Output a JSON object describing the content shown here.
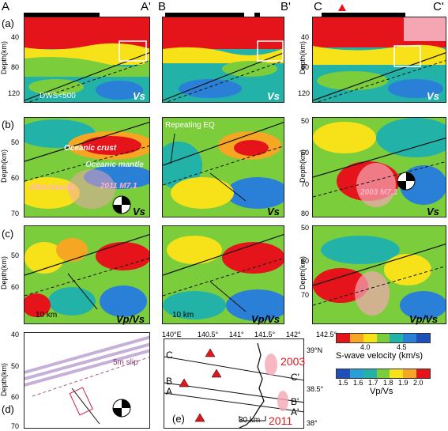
{
  "profiles": {
    "A": "A",
    "A2": "A'",
    "B": "B",
    "B2": "B'",
    "C": "C",
    "C2": "C'"
  },
  "row_labels": {
    "a": "(a)",
    "b": "(b)",
    "c": "(c)",
    "d": "(d)",
    "e": "(e)"
  },
  "ylabel": "Depth(km)",
  "row_a_ticks": [
    "40",
    "80",
    "120"
  ],
  "row_b_ticks_left": [
    "50",
    "60",
    "70"
  ],
  "row_b_ticks_right": [
    "50",
    "60",
    "70",
    "80"
  ],
  "row_c_ticks_left": [
    "50",
    "60"
  ],
  "row_c_ticks_right": [
    "50",
    "60",
    "70"
  ],
  "row_d_ticks": [
    "40",
    "50",
    "60",
    "70"
  ],
  "annotations": {
    "dws": "DWS<500",
    "vs": "Vs",
    "vpvs": "Vp/Vs",
    "oceanic_crust": "Oceanic crust",
    "oceanic_mantle": "Oceanic mantle",
    "aftershocks": "Aftershocks",
    "m2011": "2011 M7.1",
    "m2003": "2003 M7.1",
    "repeating": "Repeating EQ",
    "scale": "10 km",
    "slip": "5m slip"
  },
  "legend": {
    "vs_ticks": [
      "4.0",
      "4.5"
    ],
    "vs_label": "S-wave velocity (km/s)",
    "vpvs_ticks": [
      "1.5",
      "1.6",
      "1.7",
      "1.8",
      "1.9",
      "2.0"
    ],
    "vpvs_label": "Vp/Vs",
    "vs_colors": [
      "#e5141b",
      "#f5a623",
      "#f7e21a",
      "#7ccd3c",
      "#22b2a8",
      "#2a7fd6",
      "#1f4fb8"
    ],
    "vpvs_colors": [
      "#1f4fb8",
      "#2a9fd6",
      "#22b2a8",
      "#7ccd3c",
      "#f7e21a",
      "#f5a623",
      "#e5141b"
    ]
  },
  "map": {
    "lon_ticks": [
      "140°E",
      "140.5°",
      "141°",
      "141.5°",
      "142°",
      "142.5°"
    ],
    "lat_ticks": [
      "39°N",
      "38.5°",
      "38°"
    ],
    "line_labels": [
      "C",
      "B",
      "A",
      "C'",
      "B'",
      "A'"
    ],
    "year_2003": "2003",
    "year_2011": "2011",
    "scale": "30 km"
  },
  "colors": {
    "red": "#e8131b",
    "pink": "#f4a6b3",
    "blue": "#2a6fd0",
    "green": "#7ccd3c",
    "yellow": "#f7e21a"
  }
}
